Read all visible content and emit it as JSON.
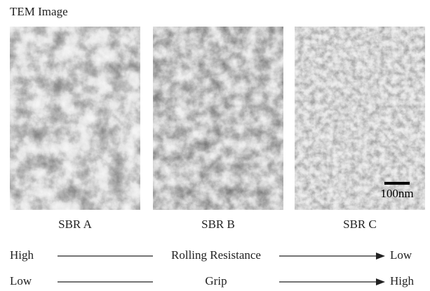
{
  "header": {
    "title": "TEM Image"
  },
  "images": [
    {
      "label": "SBR A"
    },
    {
      "label": "SBR B"
    },
    {
      "label": "SBR C",
      "scale_bar": "100nm"
    }
  ],
  "rows": [
    {
      "left": "High",
      "middle": "Rolling Resistance",
      "right": "Low"
    },
    {
      "left": "Low",
      "middle": "Grip",
      "right": "High"
    }
  ]
}
